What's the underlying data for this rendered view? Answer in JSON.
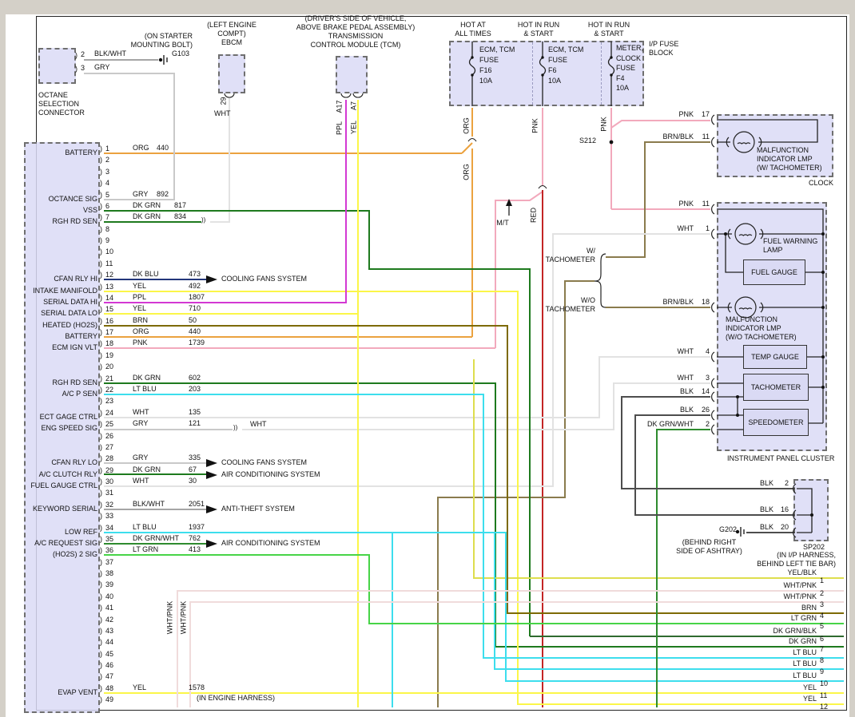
{
  "colors": {
    "ORG": "#EBA23F",
    "GRY": "#C9C9C9",
    "DK GRN": "#1E7A1E",
    "DK BLU": "#23367A",
    "YEL": "#FBF648",
    "PPL": "#D338D3",
    "BRN": "#7D6A05",
    "BRN/BLK": "#8A7B4D",
    "PNK": "#F2A9BC",
    "RED": "#C32525",
    "LT BLU": "#3DDEED",
    "WHT": "#E2E2E2",
    "BLK": "#4D4D4D",
    "BLK/WHT": "#A5A5A5",
    "DK GRN/WHT": "#2E8B2E",
    "LT GRN": "#47D447",
    "YEL/BLK": "#DEDE4E",
    "WHT/PNK": "#F0DBDB",
    "DK GRN/BLK": "#2F6B2F"
  },
  "octane_connector": {
    "title": "OCTANE\nSELECTION\nCONNECTOR",
    "pins": [
      {
        "n": "2",
        "color": "BLK/WHT"
      },
      {
        "n": "3",
        "color": "GRY"
      }
    ]
  },
  "grounds": {
    "g103": {
      "name": "G103",
      "location": "(ON STARTER\nMOUNTING BOLT)"
    },
    "g202": {
      "name": "G202",
      "location": "(BEHIND RIGHT\nSIDE OF ASHTRAY)"
    }
  },
  "ebcm": {
    "title": "(LEFT ENGINE\nCOMPT)\nEBCM",
    "pin": "29",
    "wire": "WHT"
  },
  "tcm": {
    "title": "(DRIVER'S SIDE OF VEHICLE,\nABOVE BRAKE PEDAL ASSEMBLY)\nTRANSMISSION\nCONTROL MODULE (TCM)",
    "pins": [
      {
        "n": "A17",
        "color": "PPL"
      },
      {
        "n": "A7",
        "color": "YEL"
      }
    ]
  },
  "fuse_block": {
    "name": "I/P FUSE\nBLOCK",
    "fuses": [
      {
        "feed": "HOT AT\nALL TIMES",
        "label": "ECM, TCM\nFUSE\nF16\n10A",
        "wire": "ORG"
      },
      {
        "feed": "HOT IN RUN\n& START",
        "label": "ECM, TCM\nFUSE\nF6\n10A",
        "wire": "PNK"
      },
      {
        "feed": "HOT IN RUN\n& START",
        "label": "METER,\nCLOCK\nFUSE\nF4\n10A",
        "wire": "PNK"
      }
    ]
  },
  "splices": {
    "s212": "S212",
    "sp202": {
      "name": "SP202",
      "location": "(IN I/P HARNESS,\nBEHIND LEFT TIE BAR)",
      "pins": [
        {
          "color": "BLK",
          "n": "2"
        },
        {
          "color": "BLK",
          "n": "16"
        },
        {
          "color": "BLK",
          "n": "20"
        }
      ]
    }
  },
  "clock": {
    "name": "CLOCK",
    "lamp": "MALFUNCTION\nINDICATOR LMP\n(W/ TACHOMETER)",
    "pins": [
      {
        "color": "PNK",
        "n": "17"
      },
      {
        "color": "BRN/BLK",
        "n": "11"
      }
    ]
  },
  "cluster": {
    "name": "INSTRUMENT PANEL CLUSTER",
    "fuel_warning_lamp": "FUEL WARNING\nLAMP",
    "fuel_gauge": "FUEL GAUGE",
    "mil": "MALFUNCTION\nINDICATOR LMP\n(W/O TACHOMETER)",
    "temp_gauge": "TEMP GAUGE",
    "tachometer": "TACHOMETER",
    "speedometer": "SPEEDOMETER",
    "variants": {
      "with": "W/\nTACHOMETER",
      "without": "W/O\nTACHOMETER"
    },
    "pins": [
      {
        "color": "PNK",
        "n": "11"
      },
      {
        "color": "WHT",
        "n": "1"
      },
      {
        "color": "BRN/BLK",
        "n": "18"
      },
      {
        "color": "WHT",
        "n": "4"
      },
      {
        "color": "WHT",
        "n": "3"
      },
      {
        "color": "BLK",
        "n": "14"
      },
      {
        "color": "BLK",
        "n": "26"
      },
      {
        "color": "DK GRN/WHT",
        "n": "2"
      }
    ]
  },
  "ecm": {
    "pins": [
      {
        "n": 1,
        "name": "BATTERY",
        "color": "ORG",
        "gauge": "440"
      },
      {
        "n": 5,
        "name": "OCTANCE SIG",
        "color": "GRY",
        "gauge": "892"
      },
      {
        "n": 6,
        "name": "VSS",
        "color": "DK GRN",
        "gauge": "817"
      },
      {
        "n": 7,
        "name": "RGH RD SEN",
        "color": "DK GRN",
        "gauge": "834"
      },
      {
        "n": 12,
        "name": "CFAN RLY HI",
        "color": "DK BLU",
        "gauge": "473",
        "target": "COOLING FANS SYSTEM"
      },
      {
        "n": 13,
        "name": "INTAKE MANIFOLD",
        "color": "YEL",
        "gauge": "492"
      },
      {
        "n": 14,
        "name": "SERIAL DATA HI",
        "color": "PPL",
        "gauge": "1807"
      },
      {
        "n": 15,
        "name": "SERIAL DATA LO",
        "color": "YEL",
        "gauge": "710"
      },
      {
        "n": 16,
        "name": "HEATED (HO2S)",
        "color": "BRN",
        "gauge": "50"
      },
      {
        "n": 17,
        "name": "BATTERY",
        "color": "ORG",
        "gauge": "440"
      },
      {
        "n": 18,
        "name": "ECM IGN VLT",
        "color": "PNK",
        "gauge": "1739"
      },
      {
        "n": 21,
        "name": "RGH RD SEN",
        "color": "DK GRN",
        "gauge": "602"
      },
      {
        "n": 22,
        "name": "A/C P SEN",
        "color": "LT BLU",
        "gauge": "203"
      },
      {
        "n": 24,
        "name": "ECT GAGE CTRL",
        "color": "WHT",
        "gauge": "135"
      },
      {
        "n": 25,
        "name": "ENG SPEED SIG",
        "color": "GRY",
        "gauge": "121"
      },
      {
        "n": 28,
        "name": "CFAN RLY LO",
        "color": "GRY",
        "gauge": "335",
        "target": "COOLING FANS SYSTEM"
      },
      {
        "n": 29,
        "name": "A/C CLUTCH RLY",
        "color": "DK GRN",
        "gauge": "67",
        "target": "AIR CONDITIONING SYSTEM"
      },
      {
        "n": 30,
        "name": "FUEL GAUGE CTRL",
        "color": "WHT",
        "gauge": "30"
      },
      {
        "n": 32,
        "name": "KEYWORD SERIAL",
        "color": "BLK/WHT",
        "gauge": "2051",
        "target": "ANTI-THEFT SYSTEM"
      },
      {
        "n": 34,
        "name": "LOW REF",
        "color": "LT BLU",
        "gauge": "1937"
      },
      {
        "n": 35,
        "name": "A/C REQUEST SIG",
        "color": "DK GRN/WHT",
        "gauge": "762",
        "target": "AIR CONDITIONING SYSTEM"
      },
      {
        "n": 36,
        "name": "(HO2S) 2 SIG",
        "color": "LT GRN",
        "gauge": "413"
      },
      {
        "n": 48,
        "name": "EVAP VENT",
        "color": "YEL",
        "gauge": "1578"
      }
    ]
  },
  "harness_stack": [
    {
      "color": "YEL/BLK",
      "n": "1"
    },
    {
      "color": "WHT/PNK",
      "n": "2"
    },
    {
      "color": "WHT/PNK",
      "n": "3"
    },
    {
      "color": "BRN",
      "n": "4"
    },
    {
      "color": "LT GRN",
      "n": "5"
    },
    {
      "color": "DK GRN/BLK",
      "n": "6"
    },
    {
      "color": "DK GRN",
      "n": "7"
    },
    {
      "color": "LT BLU",
      "n": "8"
    },
    {
      "color": "LT BLU",
      "n": "9"
    },
    {
      "color": "LT BLU",
      "n": "10"
    },
    {
      "color": "YEL",
      "n": "11"
    },
    {
      "color": "YEL",
      "n": "12"
    }
  ],
  "notes": {
    "engine_harness": "(IN ENGINE HARNESS)",
    "mt": "M/T",
    "red": "RED",
    "wht_cont": "WHT",
    "whtpnk": "WHT/PNK",
    "org": "ORG",
    "pnk": "PNK"
  }
}
